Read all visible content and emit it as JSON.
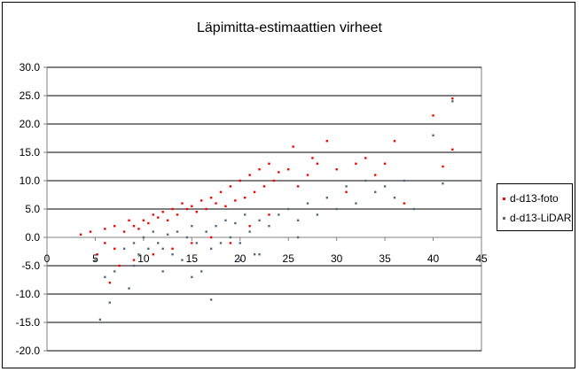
{
  "chart_data": {
    "type": "scatter",
    "title": "Läpimitta-estimaattien virheet",
    "xlabel": "",
    "ylabel": "",
    "xlim": [
      0,
      45
    ],
    "ylim": [
      -20,
      30
    ],
    "x_ticks": [
      0,
      5,
      10,
      15,
      20,
      25,
      30,
      35,
      40,
      45
    ],
    "x_tick_labels": [
      "0",
      "5",
      "10",
      "15",
      "20",
      "25",
      "30",
      "35",
      "40",
      "45"
    ],
    "y_ticks": [
      30,
      25,
      20,
      15,
      10,
      5,
      0,
      -5,
      -10,
      -15,
      -20
    ],
    "y_tick_labels": [
      "30.0",
      "25.0",
      "20.0",
      "15.0",
      "10.0",
      "5.0",
      "0.0",
      "-5.0",
      "-10.0",
      "-15.0",
      "-20.0"
    ],
    "grid": "horizontal",
    "legend_placement": "right",
    "series": [
      {
        "name": "d-d13-foto",
        "color": "#ff0000",
        "x": [
          3.5,
          4.5,
          5.2,
          6.0,
          6.5,
          7.0,
          7.5,
          8.0,
          8.5,
          9.0,
          9.5,
          10.0,
          10.5,
          11.0,
          11.5,
          12.0,
          12.5,
          13.0,
          13.5,
          14.0,
          14.5,
          15.0,
          15.5,
          16.0,
          16.5,
          17.0,
          17.5,
          18.0,
          18.5,
          19.0,
          19.5,
          20.0,
          20.5,
          21.0,
          21.5,
          22.0,
          22.5,
          23.0,
          23.5,
          24.0,
          25.0,
          25.5,
          26.0,
          27.0,
          27.5,
          28.0,
          29.0,
          30.0,
          31.0,
          32.0,
          33.0,
          34.0,
          35.0,
          36.0,
          37.0,
          40.0,
          41.0,
          42.0,
          42.0,
          6.0,
          7.0,
          9.0,
          11.0,
          13.0,
          15.0,
          17.0,
          19.0,
          21.0,
          23.0
        ],
        "y": [
          0.5,
          1.0,
          -3.0,
          1.5,
          -8.0,
          2.0,
          -5.0,
          1.0,
          3.0,
          2.0,
          1.5,
          3.0,
          2.5,
          4.0,
          3.5,
          4.5,
          3.0,
          5.0,
          4.0,
          6.0,
          5.0,
          5.5,
          4.5,
          6.5,
          5.0,
          7.0,
          6.0,
          8.0,
          5.5,
          9.0,
          6.5,
          10.0,
          7.0,
          11.0,
          8.0,
          12.0,
          9.0,
          13.0,
          10.0,
          11.5,
          12.0,
          16.0,
          9.0,
          11.0,
          14.0,
          13.0,
          17.0,
          12.0,
          8.0,
          13.0,
          14.0,
          11.0,
          13.0,
          17.0,
          6.0,
          21.5,
          12.5,
          24.5,
          15.5,
          -1.0,
          -2.0,
          -4.0,
          -3.0,
          -2.0,
          -1.0,
          0.0,
          -1.0,
          2.0,
          4.0
        ]
      },
      {
        "name": "d-d13-LiDAR",
        "color": "#556b7d",
        "x": [
          5.5,
          6.5,
          7.0,
          8.0,
          8.5,
          9.0,
          9.5,
          10.0,
          10.5,
          11.0,
          11.5,
          12.0,
          12.5,
          13.0,
          13.5,
          14.0,
          14.5,
          15.0,
          15.5,
          16.0,
          16.5,
          17.0,
          17.5,
          18.0,
          18.5,
          19.0,
          19.5,
          20.0,
          20.5,
          21.0,
          21.5,
          22.0,
          23.0,
          24.0,
          25.0,
          26.0,
          27.0,
          28.0,
          29.0,
          30.0,
          31.0,
          32.0,
          33.0,
          34.0,
          35.0,
          36.0,
          37.0,
          38.0,
          40.0,
          41.0,
          42.0,
          5.0,
          6.0,
          9.0,
          12.0,
          15.0,
          17.0,
          20.0,
          22.0,
          26.0
        ],
        "y": [
          -14.5,
          -11.5,
          -6.0,
          -2.0,
          -9.0,
          -1.0,
          -3.0,
          0.0,
          -2.0,
          1.0,
          -1.0,
          -2.0,
          0.5,
          -3.0,
          1.0,
          -4.0,
          0.0,
          2.0,
          -1.0,
          -6.0,
          1.0,
          -2.0,
          2.0,
          -1.0,
          3.0,
          0.0,
          2.5,
          -1.0,
          4.0,
          1.0,
          -3.0,
          3.0,
          2.0,
          4.0,
          5.0,
          3.0,
          6.0,
          4.0,
          7.0,
          5.0,
          9.0,
          6.0,
          10.0,
          8.0,
          9.0,
          7.0,
          10.0,
          5.0,
          18.0,
          9.5,
          24.0,
          -4.0,
          -7.0,
          -5.0,
          -6.0,
          -7.0,
          -11.0,
          -4.0,
          -3.0,
          0.0
        ]
      }
    ]
  }
}
